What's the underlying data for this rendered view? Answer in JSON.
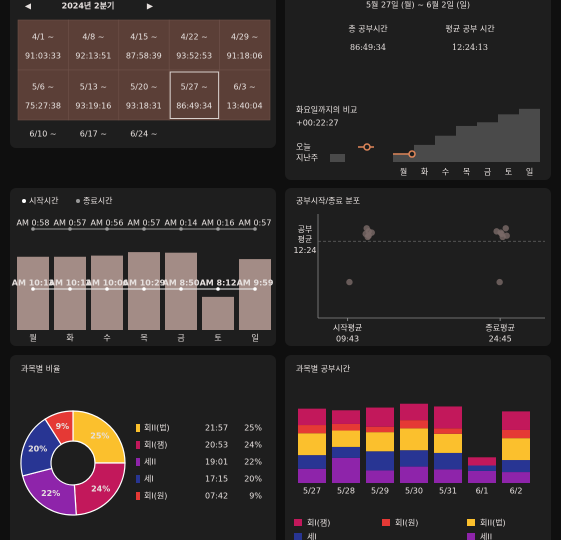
{
  "calendar": {
    "title": "2024년 2분기",
    "prev": "◀",
    "next": "▶",
    "selected": 8,
    "weeks": [
      {
        "date": "4/1 ~",
        "total": "91:03:33"
      },
      {
        "date": "4/8 ~",
        "total": "92:13:51"
      },
      {
        "date": "4/15 ~",
        "total": "87:58:39"
      },
      {
        "date": "4/22 ~",
        "total": "93:52:53"
      },
      {
        "date": "4/29 ~",
        "total": "91:18:06"
      },
      {
        "date": "5/6 ~",
        "total": "75:27:38"
      },
      {
        "date": "5/13 ~",
        "total": "93:19:16"
      },
      {
        "date": "5/20 ~",
        "total": "93:18:31"
      },
      {
        "date": "5/27 ~",
        "total": "86:49:34"
      },
      {
        "date": "6/3 ~",
        "total": "13:40:04"
      },
      {
        "date": "6/10 ~"
      },
      {
        "date": "6/17 ~"
      },
      {
        "date": "6/24 ~"
      }
    ]
  },
  "weekly_summary": {
    "range": "5월 27일 (월) ~ 6월 2일 (일)",
    "total_label": "총 공부시간",
    "total": "86:49:34",
    "average_label": "평균 공부 시간",
    "average": "12:24:13",
    "compare_label": "화요일까지의 비교",
    "compare": "+00:22:27",
    "chart": {
      "type": "step",
      "days": [
        "월",
        "화",
        "수",
        "목",
        "금",
        "토",
        "일"
      ],
      "ylim": [
        0,
        90
      ],
      "series": [
        {
          "name": "오늘",
          "color": "#e0875a",
          "values": [
            13
          ]
        },
        {
          "name": "지난주",
          "color": "#4a4a4a",
          "values": [
            12,
            28,
            43,
            59,
            65,
            78,
            87
          ]
        }
      ]
    }
  },
  "time_chart": {
    "type": "bar",
    "legend": [
      "시작시간",
      "종료시간"
    ],
    "days": [
      "월",
      "화",
      "수",
      "목",
      "금",
      "토",
      "일"
    ],
    "color": "#a38c86",
    "ylim": [
      0,
      16
    ],
    "values": [
      12.6,
      12.6,
      12.8,
      13.4,
      13.3,
      5.7,
      12.2
    ],
    "start_labels": [
      "AM 10:13",
      "AM 10:12",
      "AM 10:06",
      "AM 10:29",
      "AM 8:50",
      "AM 8:12",
      "AM 9:59"
    ],
    "end_labels": [
      "AM 0:58",
      "AM 0:57",
      "AM 0:56",
      "AM 0:57",
      "AM 0:14",
      "AM 0:16",
      "AM 0:57"
    ]
  },
  "distribution": {
    "type": "scatter",
    "title": "공부시작/종료 분포",
    "y_title": [
      "공부",
      "평균"
    ],
    "x_titles": [
      "시작평균",
      "종료평균"
    ],
    "xlim": [
      7,
      27
    ],
    "ylim": [
      0,
      16
    ],
    "xticks": [
      {
        "value": 9.717,
        "label": "09:43"
      },
      {
        "value": 24.75,
        "label": "24:45"
      }
    ],
    "yticks": [
      {
        "value": 12.4,
        "label": "12:24"
      }
    ],
    "start_points": {
      "x": [
        11.5,
        11.8,
        12.1,
        11.6,
        11.8,
        9.9,
        11.7
      ],
      "y": [
        13.6,
        13.3,
        13.8,
        14.5,
        14.0,
        5.8,
        13.1
      ]
    },
    "end_points": {
      "x": [
        24.9,
        25.4,
        24.8,
        25.3,
        24.4,
        24.7,
        25.0
      ],
      "y": [
        13.6,
        13.3,
        13.8,
        14.5,
        14.0,
        5.8,
        13.1
      ]
    }
  },
  "subject_ratio": {
    "type": "pie",
    "title": "과목별 비율",
    "categories": [
      "회II(법)",
      "회I(잼)",
      "세II",
      "세I",
      "회I(원)"
    ],
    "colors": [
      "#fbc02d",
      "#c2185b",
      "#8e24aa",
      "#283593",
      "#e53935"
    ],
    "values": [
      25,
      24,
      22,
      20,
      9
    ],
    "value_labels": [
      "25%",
      "24%",
      "22%",
      "20%",
      "9%"
    ],
    "times": [
      "21:57",
      "20:53",
      "19:01",
      "17:15",
      "07:42"
    ]
  },
  "subject_time": {
    "type": "stacked-bar",
    "title": "과목별 공부시간",
    "categories": [
      "5/27",
      "5/28",
      "5/29",
      "5/30",
      "5/31",
      "6/1",
      "6/2"
    ],
    "ylim": [
      0,
      15
    ],
    "series": [
      {
        "name": "회I(잼)",
        "color": "#c2185b",
        "values": [
          3.0,
          2.5,
          3.5,
          3.0,
          4.0,
          1.5,
          3.4
        ]
      },
      {
        "name": "회I(원)",
        "color": "#e53935",
        "values": [
          1.5,
          1.2,
          1.0,
          1.5,
          1.0,
          0,
          1.5
        ]
      },
      {
        "name": "회II(법)",
        "color": "#fbc02d",
        "values": [
          4.0,
          3.0,
          3.5,
          4.0,
          3.5,
          0,
          4.0
        ]
      },
      {
        "name": "세I",
        "color": "#283593",
        "values": [
          2.5,
          2.0,
          3.5,
          3.0,
          3.0,
          1.0,
          2.2
        ]
      },
      {
        "name": "세II",
        "color": "#8e24aa",
        "values": [
          2.6,
          4.6,
          2.3,
          3.0,
          2.5,
          2.2,
          2.0
        ]
      }
    ]
  }
}
